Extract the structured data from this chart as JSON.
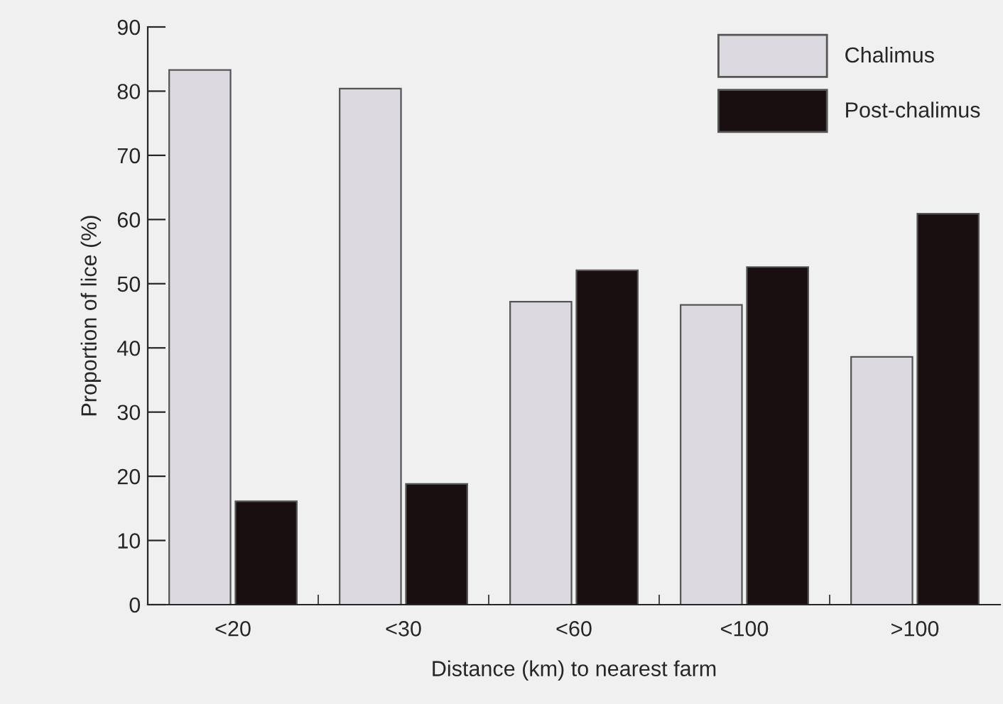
{
  "chart_data": {
    "type": "bar",
    "xlabel": "Distance (km) to nearest farm",
    "ylabel": "Proportion of lice (%)",
    "categories": [
      "<20",
      "<30",
      "<60",
      "<100",
      ">100"
    ],
    "series": [
      {
        "name": "Chalimus",
        "color": "#dcdae0",
        "values": [
          83.3,
          80.4,
          47.2,
          46.7,
          38.6
        ]
      },
      {
        "name": "Post-chalimus",
        "color": "#1a0f10",
        "values": [
          16.1,
          18.8,
          52.1,
          52.6,
          60.9
        ]
      }
    ],
    "ylim": [
      0,
      90
    ],
    "yticks": [
      0,
      10,
      20,
      30,
      40,
      50,
      60,
      70,
      80,
      90
    ],
    "grid": false,
    "legend": "top right"
  }
}
